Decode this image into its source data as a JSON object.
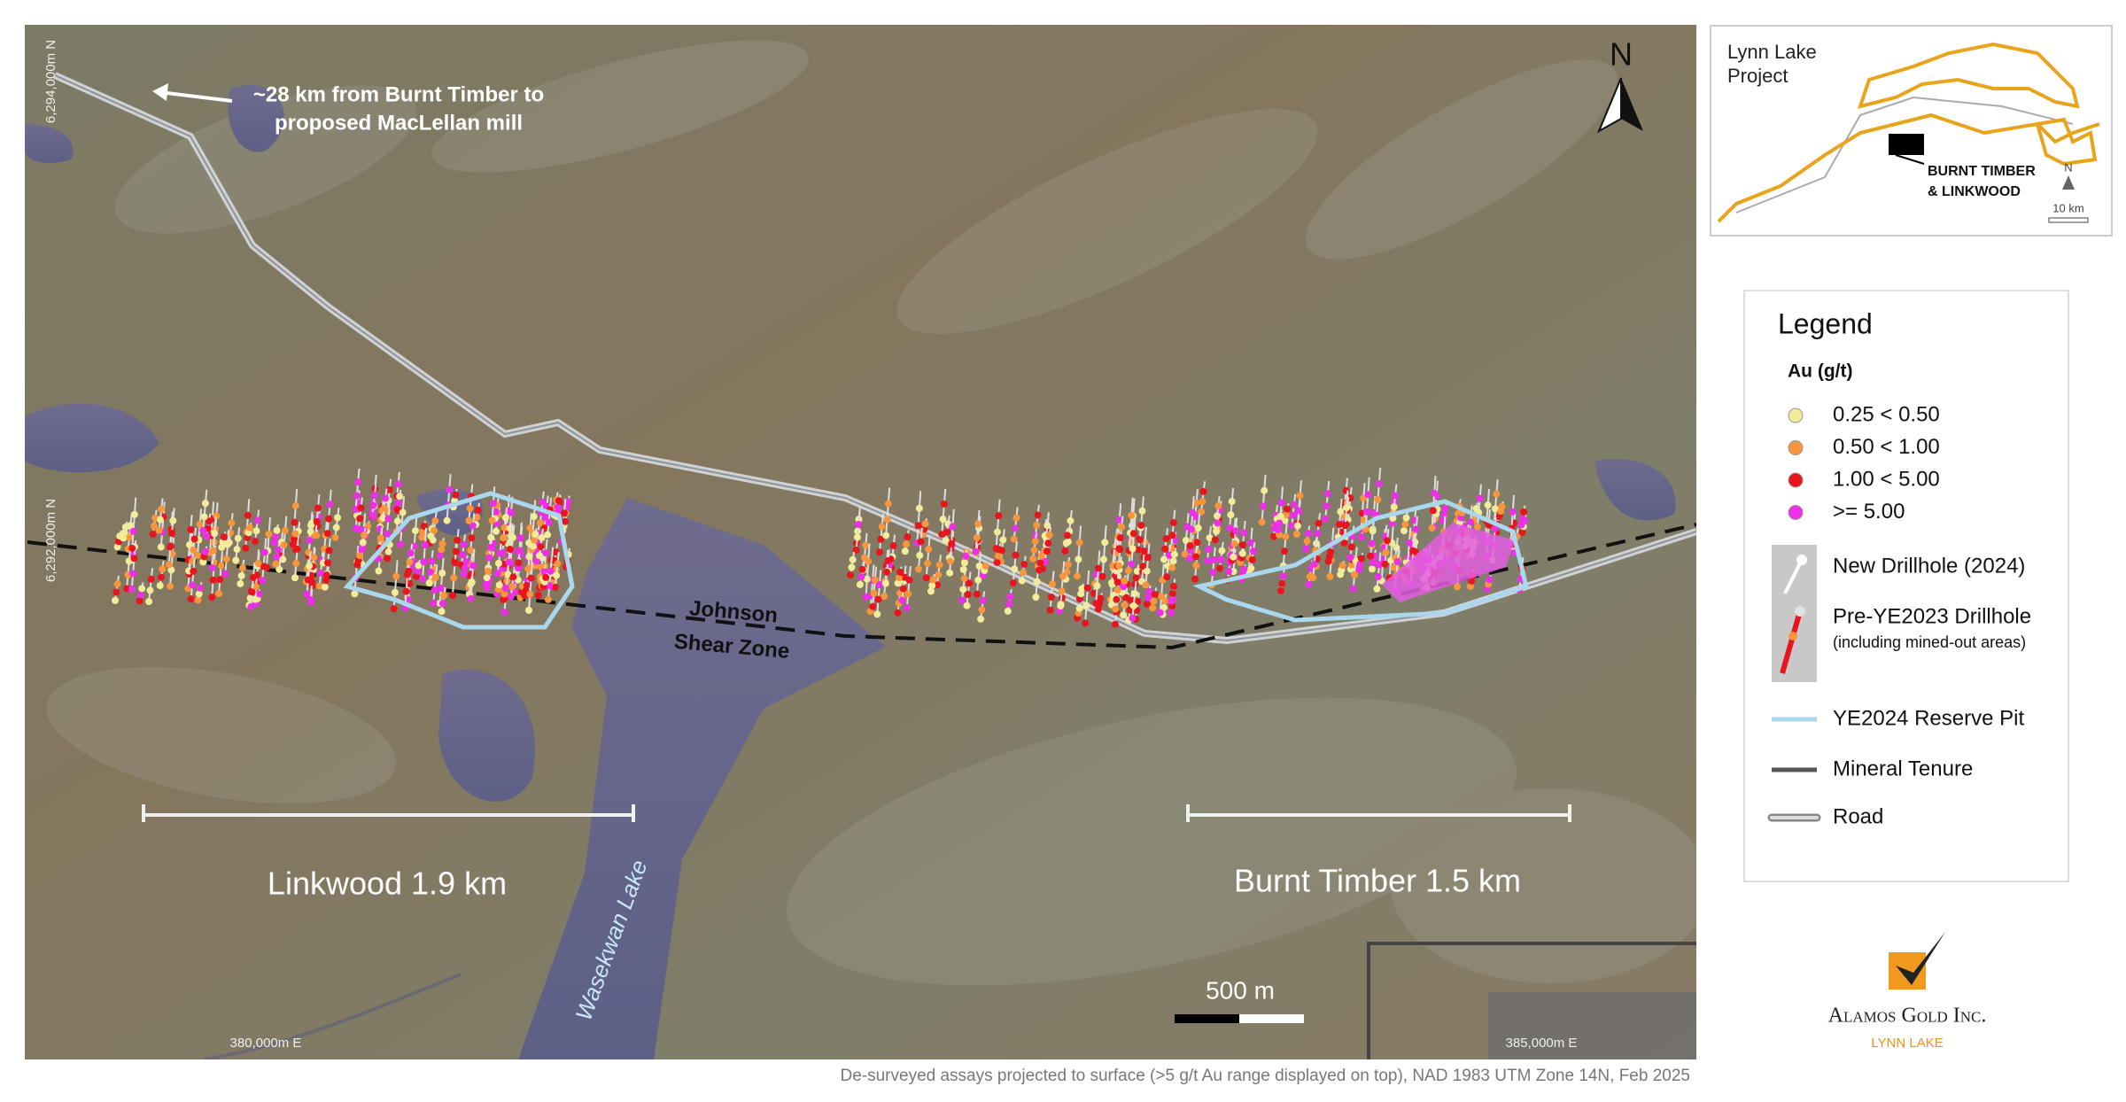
{
  "map": {
    "labels": {
      "distance_note_1": "~28 km from Burnt Timber to",
      "distance_note_2": "proposed MacLellan mill",
      "shear_zone_1": "Johnson",
      "shear_zone_2": "Shear Zone",
      "lake": "Wasekwan Lake",
      "linkwood": "Linkwood 1.9 km",
      "burnt_timber": "Burnt Timber 1.5 km",
      "scale": "500 m",
      "north": "N"
    },
    "coordinates": {
      "y_top": "6,294,000m N",
      "y_mid": "6,292,000m N",
      "x_left": "380,000m E",
      "x_right": "385,000m E"
    }
  },
  "inset": {
    "title_1": "Lynn Lake",
    "title_2": "Project",
    "site_1": "BURNT TIMBER",
    "site_2": "& LINKWOOD",
    "north": "N",
    "scale": "10 km"
  },
  "legend": {
    "title": "Legend",
    "subtitle": "Au (g/t)",
    "grades": [
      {
        "label": "0.25 < 0.50",
        "color": "#f1ec9a"
      },
      {
        "label": "0.50 < 1.00",
        "color": "#f7963c"
      },
      {
        "label": "1.00 < 5.00",
        "color": "#e8141e"
      },
      {
        "label": ">= 5.00",
        "color": "#ee2ee8"
      }
    ],
    "new_drillhole": "New Drillhole (2024)",
    "pre_drillhole": "Pre-YE2023 Drillhole",
    "pre_drillhole_note": "(including mined-out areas)",
    "reserve_pit": "YE2024 Reserve Pit",
    "tenure": "Mineral Tenure",
    "road": "Road"
  },
  "logo": {
    "company": "Alamos Gold Inc.",
    "project": "LYNN LAKE"
  },
  "footer": "De-surveyed assays projected to surface (>5 g/t Au range displayed on top), NAD 1983 UTM Zone 14N, Feb 2025"
}
